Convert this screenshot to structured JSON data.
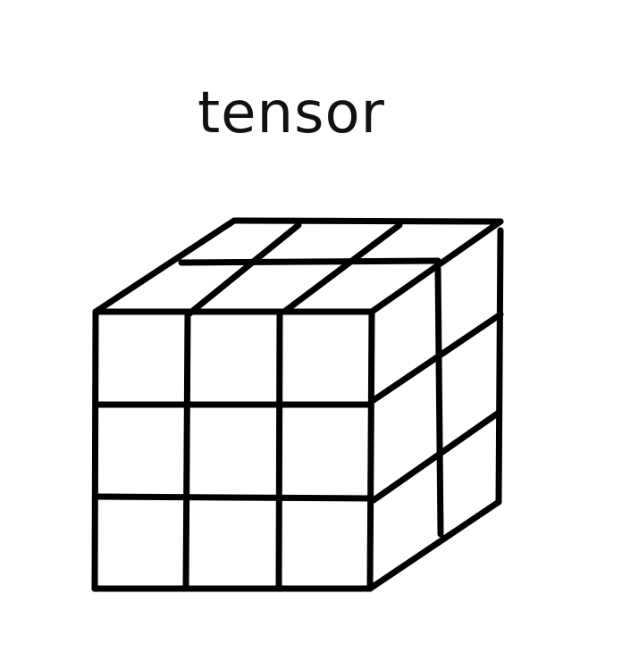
{
  "title": "tensor",
  "colors": {
    "stroke": "#000000",
    "background": "#ffffff",
    "text": "#111111"
  }
}
